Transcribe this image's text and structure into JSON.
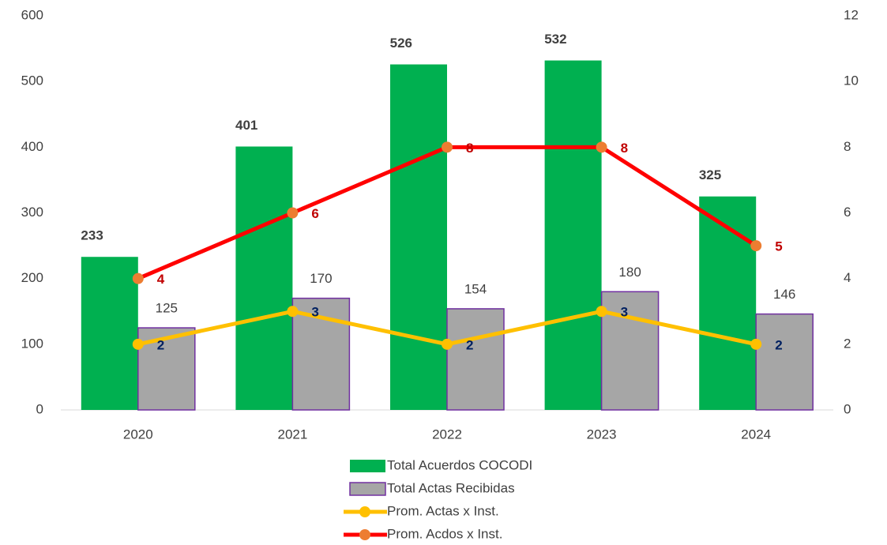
{
  "chart_data": {
    "type": "bar_line",
    "categories": [
      "2020",
      "2021",
      "2022",
      "2023",
      "2024"
    ],
    "ylim": [
      0,
      600
    ],
    "yticks": [
      0,
      100,
      200,
      300,
      400,
      500,
      600
    ],
    "y2lim": [
      0,
      12
    ],
    "y2ticks": [
      0,
      2,
      4,
      6,
      8,
      10,
      12
    ],
    "series": [
      {
        "name": "Total Acuerdos COCODI",
        "type": "bar",
        "color": "#00b050",
        "values": [
          233,
          401,
          526,
          532,
          325
        ]
      },
      {
        "name": "Total Actas Recibidas",
        "type": "bar",
        "color": "#a6a6a6",
        "edge": "#7030a0",
        "values": [
          125,
          170,
          154,
          180,
          146
        ]
      },
      {
        "name": "Prom. Actas x Inst.",
        "type": "line",
        "axis": "y2",
        "color": "#ffc000",
        "label_color": "#002060",
        "values": [
          2,
          3,
          2,
          3,
          2
        ]
      },
      {
        "name": "Prom. Acdos x Inst.",
        "type": "line",
        "axis": "y2",
        "color": "#ff0000",
        "marker": "#ed7d31",
        "label_color": "#c00000",
        "values": [
          4,
          6,
          8,
          8,
          5
        ]
      }
    ],
    "legend": "bottom"
  }
}
